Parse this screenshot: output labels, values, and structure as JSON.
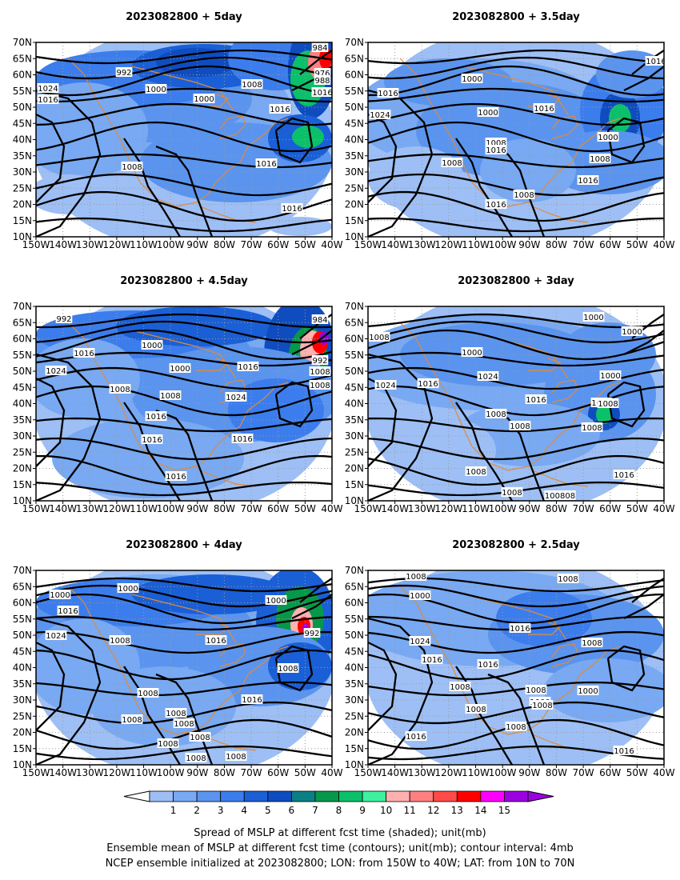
{
  "panels": [
    {
      "title": "2023082800  +  5day",
      "labels": [
        "984",
        "992",
        "1000",
        "1000",
        "1008",
        "1016",
        "1016",
        "1016",
        "1024",
        "1008",
        "1016",
        "976",
        "988",
        "1016",
        "1016"
      ]
    },
    {
      "title": "2023082800  +  3.5day",
      "labels": [
        "1000",
        "1016",
        "1024",
        "1000",
        "1016",
        "1000",
        "1008",
        "1016",
        "1008",
        "1008",
        "1016",
        "1008",
        "1016",
        "1016"
      ]
    },
    {
      "title": "2023082800  +  4.5day",
      "labels": [
        "992",
        "1016",
        "1000",
        "1024",
        "1000",
        "1008",
        "1008",
        "1016",
        "1024",
        "1016",
        "1016",
        "1016",
        "1016",
        "984",
        "992",
        "1008",
        "1008"
      ]
    },
    {
      "title": "2023082800  +  3day",
      "labels": [
        "1008",
        "1000",
        "1000",
        "1024",
        "1016",
        "1000",
        "1016",
        "1008",
        "1000",
        "1008",
        "1000",
        "1008",
        "1008",
        "1016",
        "1008",
        "100808",
        "1008",
        "1000",
        "1024"
      ]
    },
    {
      "title": "2023082800  +  4day",
      "labels": [
        "1000",
        "1000",
        "1016",
        "1024",
        "1008",
        "1016",
        "1000",
        "992",
        "1008",
        "1008",
        "1008",
        "1008",
        "1016",
        "1008",
        "1008",
        "1008",
        "1008",
        "1008"
      ]
    },
    {
      "title": "2023082800  +  2.5day",
      "labels": [
        "1008",
        "1008",
        "1000",
        "1016",
        "1024",
        "1016",
        "1016",
        "1008",
        "1008",
        "1008",
        "1008",
        "1000",
        "1000",
        "1008",
        "1016",
        "1008",
        "1016"
      ]
    }
  ],
  "lon_ticks": [
    "150W",
    "140W",
    "130W",
    "120W",
    "110W",
    "100W",
    "90W",
    "80W",
    "70W",
    "60W",
    "50W",
    "40W"
  ],
  "lat_ticks": [
    "70N",
    "65N",
    "60N",
    "55N",
    "50N",
    "45N",
    "40N",
    "35N",
    "30N",
    "25N",
    "20N",
    "15N",
    "10N"
  ],
  "colorbar": {
    "levels": [
      "1",
      "2",
      "3",
      "4",
      "5",
      "6",
      "7",
      "8",
      "9",
      "10",
      "11",
      "12",
      "13",
      "14",
      "15"
    ],
    "colors": [
      "#ffffff",
      "#9dbff5",
      "#78a9f2",
      "#5a94ee",
      "#3c7ded",
      "#1a5fd6",
      "#0f4cbf",
      "#0b7f86",
      "#06984a",
      "#0bc06a",
      "#3ff0a0",
      "#ffb0b0",
      "#ff8080",
      "#ff4a4a",
      "#ff0000",
      "#ff00ff",
      "#9d00e0"
    ]
  },
  "caption": [
    "Spread of MSLP at different fcst time (shaded); unit(mb)",
    "Ensemble mean of MSLP at different fcst time (contours); unit(mb); contour interval: 4mb",
    "NCEP ensemble initialized at 2023082800; LON: from 150W to 40W; LAT: from 10N to 70N"
  ]
}
